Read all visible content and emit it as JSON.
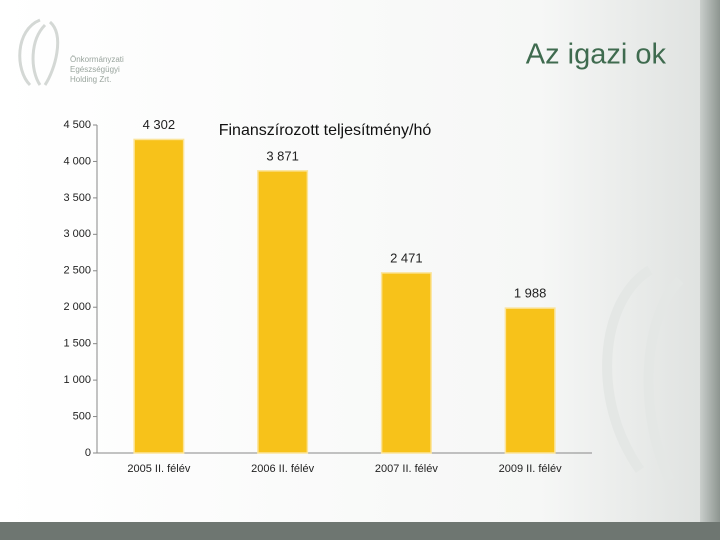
{
  "slide": {
    "title": "Az igazi ok",
    "logo_text": [
      "Önkormányzati",
      "Egészségügyi",
      "Holding Zrt."
    ]
  },
  "chart_data": {
    "type": "bar",
    "title": "Finanszírozott teljesítmény/hó",
    "categories": [
      "2005 II. félév",
      "2006 II. félév",
      "2007 II. félév",
      "2009 II. félév"
    ],
    "values": [
      4302,
      3871,
      2471,
      1988
    ],
    "value_labels": [
      "4 302",
      "3 871",
      "2 471",
      "1 988"
    ],
    "color": "#f7c21a",
    "ylim": [
      0,
      4500
    ],
    "yticks": [
      0,
      500,
      {
        "value": 1000,
        "label": "1 000"
      },
      {
        "value": 1500,
        "label": "1 500"
      },
      {
        "value": 2000,
        "label": "2 000"
      },
      {
        "value": 2500,
        "label": "2 500"
      },
      {
        "value": 3000,
        "label": "3 000"
      },
      {
        "value": 3500,
        "label": "3 500"
      },
      {
        "value": 4000,
        "label": "4 000"
      },
      {
        "value": 4500,
        "label": "4 500"
      }
    ],
    "grid": false
  }
}
